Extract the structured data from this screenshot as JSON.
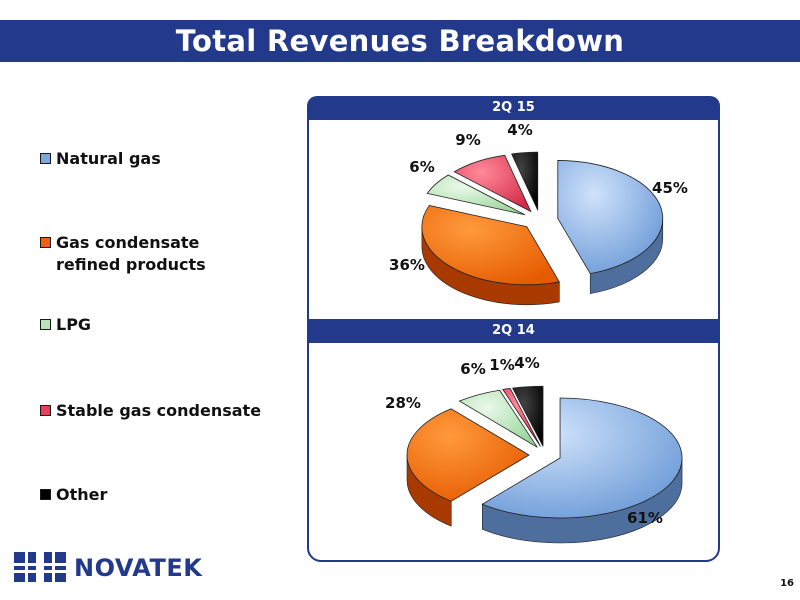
{
  "slide": {
    "title": "Total Revenues Breakdown",
    "logo_text": "NOVATEK",
    "page_number": "16"
  },
  "legend": [
    {
      "label": "Natural gas",
      "color": "#7ba7dc"
    },
    {
      "label": "Gas condensate\nrefined products",
      "color": "#f06010"
    },
    {
      "label": "LPG",
      "color": "#b8e4b8"
    },
    {
      "label": "Stable gas condensate",
      "color": "#e8405a"
    },
    {
      "label": "Other",
      "color": "#000000"
    }
  ],
  "chart_data": [
    {
      "type": "pie",
      "title": "2Q 15",
      "categories": [
        "Natural gas",
        "Gas condensate refined products",
        "LPG",
        "Stable gas condensate",
        "Other"
      ],
      "values": [
        45,
        36,
        6,
        9,
        4
      ],
      "labels": [
        "45%",
        "36%",
        "6%",
        "9%",
        "4%"
      ]
    },
    {
      "type": "pie",
      "title": "2Q 14",
      "categories": [
        "Natural gas",
        "Gas condensate refined products",
        "LPG",
        "Stable gas condensate",
        "Other"
      ],
      "values": [
        61,
        28,
        6,
        1,
        4
      ],
      "labels": [
        "61%",
        "28%",
        "6%",
        "1%",
        "4%"
      ]
    }
  ]
}
